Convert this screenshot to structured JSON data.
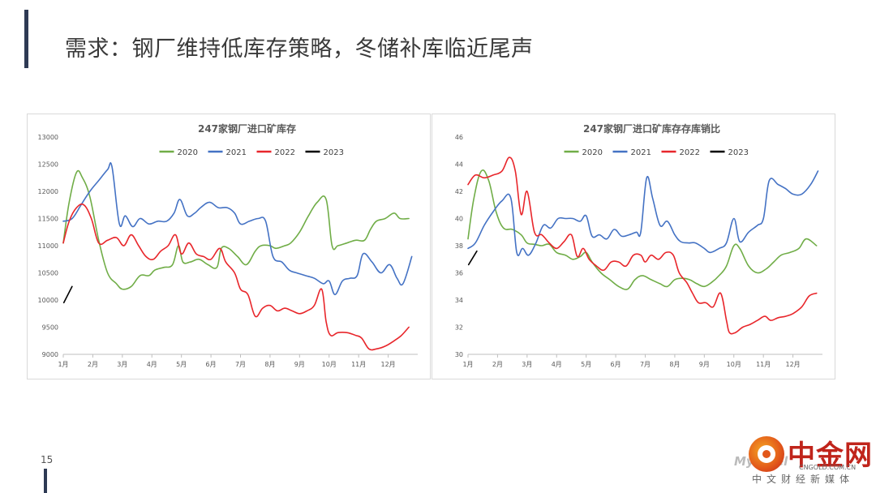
{
  "page": {
    "title": "需求：钢厂维持低库存策略，冬储补库临近尾声",
    "page_number": "15"
  },
  "logo": {
    "watermark": "Mysteel",
    "name": "中金网",
    "url": "CNGOLD.COM.CN",
    "subtitle": "中文财经新媒体",
    "accent": "#c0241b"
  },
  "chart_data": [
    {
      "type": "line",
      "title": "247家钢厂进口矿库存",
      "xlabel": "",
      "ylabel": "",
      "ylim": [
        9000,
        13000
      ],
      "yticks": [
        9000,
        9500,
        10000,
        10500,
        11000,
        11500,
        12000,
        12500,
        13000
      ],
      "xlim": [
        1,
        13
      ],
      "xticks": [
        1,
        2,
        3,
        4,
        5,
        6,
        7,
        8,
        9,
        10,
        11,
        12
      ],
      "xtick_labels": [
        "1月",
        "2月",
        "3月",
        "4月",
        "5月",
        "6月",
        "7月",
        "8月",
        "9月",
        "10月",
        "11月",
        "12月"
      ],
      "grid": false,
      "legend": "top",
      "series": [
        {
          "name": "2020",
          "color": "#70ad47",
          "x": [
            1.0,
            1.2,
            1.45,
            1.65,
            1.9,
            2.2,
            2.5,
            2.8,
            3.0,
            3.3,
            3.6,
            3.9,
            4.1,
            4.4,
            4.7,
            4.9,
            5.05,
            5.3,
            5.6,
            5.9,
            6.2,
            6.35,
            6.6,
            6.9,
            7.2,
            7.5,
            7.7,
            8.0,
            8.2,
            8.5,
            8.7,
            9.0,
            9.3,
            9.6,
            9.9,
            10.1,
            10.3,
            10.6,
            10.9,
            11.2,
            11.4,
            11.6,
            11.9,
            12.2,
            12.4,
            12.7
          ],
          "y": [
            11050,
            11800,
            12350,
            12250,
            11900,
            11100,
            10500,
            10300,
            10200,
            10250,
            10450,
            10450,
            10550,
            10600,
            10650,
            11000,
            10700,
            10700,
            10750,
            10650,
            10600,
            10950,
            10950,
            10800,
            10650,
            10900,
            11000,
            11000,
            10950,
            11000,
            11050,
            11250,
            11550,
            11800,
            11850,
            11000,
            11000,
            11050,
            11100,
            11100,
            11300,
            11450,
            11500,
            11600,
            11500,
            11500
          ]
        },
        {
          "name": "2021",
          "color": "#4472c4",
          "x": [
            1.0,
            1.3,
            1.6,
            1.9,
            2.2,
            2.5,
            2.65,
            2.9,
            3.1,
            3.35,
            3.6,
            3.9,
            4.2,
            4.5,
            4.75,
            4.95,
            5.2,
            5.45,
            5.65,
            5.95,
            6.25,
            6.55,
            6.8,
            7.0,
            7.3,
            7.6,
            7.85,
            8.1,
            8.4,
            8.65,
            8.9,
            9.2,
            9.5,
            9.8,
            10.0,
            10.2,
            10.45,
            10.7,
            10.95,
            11.15,
            11.45,
            11.75,
            12.05,
            12.3,
            12.5,
            12.8
          ],
          "y": [
            11450,
            11500,
            11750,
            12000,
            12200,
            12400,
            12450,
            11400,
            11550,
            11350,
            11500,
            11400,
            11450,
            11450,
            11600,
            11850,
            11550,
            11600,
            11700,
            11800,
            11700,
            11700,
            11600,
            11400,
            11450,
            11500,
            11450,
            10800,
            10700,
            10550,
            10500,
            10450,
            10400,
            10300,
            10350,
            10100,
            10350,
            10400,
            10450,
            10850,
            10700,
            10500,
            10650,
            10400,
            10300,
            10800
          ]
        },
        {
          "name": "2022",
          "color": "#e8262b",
          "x": [
            1.0,
            1.2,
            1.45,
            1.7,
            1.95,
            2.2,
            2.5,
            2.8,
            3.05,
            3.3,
            3.55,
            3.8,
            4.05,
            4.3,
            4.55,
            4.8,
            5.0,
            5.25,
            5.5,
            5.75,
            6.0,
            6.3,
            6.5,
            6.8,
            7.0,
            7.25,
            7.5,
            7.75,
            8.0,
            8.25,
            8.5,
            8.75,
            9.0,
            9.25,
            9.5,
            9.75,
            9.9,
            10.05,
            10.3,
            10.6,
            10.9,
            11.1,
            11.35,
            11.6,
            11.9,
            12.2,
            12.45,
            12.7
          ],
          "y": [
            11050,
            11450,
            11700,
            11750,
            11500,
            11050,
            11100,
            11150,
            11000,
            11200,
            11000,
            10800,
            10750,
            10900,
            11000,
            11200,
            10850,
            11050,
            10850,
            10800,
            10750,
            10950,
            10700,
            10500,
            10200,
            10100,
            9700,
            9850,
            9900,
            9800,
            9850,
            9800,
            9750,
            9800,
            9900,
            10200,
            9600,
            9350,
            9400,
            9400,
            9350,
            9300,
            9100,
            9100,
            9150,
            9250,
            9350,
            9500
          ]
        },
        {
          "name": "2023",
          "color": "#000000",
          "x": [
            1.02,
            1.3
          ],
          "y": [
            9950,
            10250
          ]
        }
      ]
    },
    {
      "type": "line",
      "title": "247家钢厂进口矿库存存库销比",
      "xlabel": "",
      "ylabel": "",
      "ylim": [
        30,
        46
      ],
      "yticks": [
        30,
        32,
        34,
        36,
        38,
        40,
        42,
        44,
        46
      ],
      "xlim": [
        1,
        13
      ],
      "xticks": [
        1,
        2,
        3,
        4,
        5,
        6,
        7,
        8,
        9,
        10,
        11,
        12
      ],
      "xtick_labels": [
        "1月",
        "2月",
        "3月",
        "4月",
        "5月",
        "6月",
        "7月",
        "8月",
        "9月",
        "10月",
        "11月",
        "12月"
      ],
      "grid": false,
      "legend": "top",
      "series": [
        {
          "name": "2020",
          "color": "#70ad47",
          "x": [
            1.0,
            1.2,
            1.45,
            1.7,
            1.95,
            2.2,
            2.5,
            2.8,
            3.0,
            3.25,
            3.5,
            3.75,
            4.0,
            4.3,
            4.55,
            4.8,
            5.0,
            5.2,
            5.5,
            5.8,
            6.1,
            6.4,
            6.65,
            6.9,
            7.2,
            7.5,
            7.75,
            8.0,
            8.25,
            8.5,
            8.75,
            9.0,
            9.25,
            9.5,
            9.75,
            10.0,
            10.2,
            10.5,
            10.8,
            11.1,
            11.35,
            11.6,
            11.9,
            12.2,
            12.45,
            12.8
          ],
          "y": [
            38.5,
            41.5,
            43.5,
            42.8,
            40.5,
            39.3,
            39.2,
            38.8,
            38.2,
            38.1,
            38.0,
            38.1,
            37.5,
            37.3,
            37.0,
            37.2,
            37.5,
            36.8,
            36.0,
            35.5,
            35.0,
            34.8,
            35.5,
            35.8,
            35.5,
            35.2,
            35.0,
            35.5,
            35.6,
            35.5,
            35.2,
            35.0,
            35.3,
            35.8,
            36.5,
            38.0,
            37.8,
            36.5,
            36.0,
            36.3,
            36.8,
            37.3,
            37.5,
            37.8,
            38.5,
            38.0
          ]
        },
        {
          "name": "2021",
          "color": "#4472c4",
          "x": [
            1.0,
            1.25,
            1.55,
            1.85,
            2.15,
            2.45,
            2.65,
            2.85,
            3.05,
            3.3,
            3.55,
            3.8,
            4.05,
            4.3,
            4.55,
            4.8,
            5.0,
            5.2,
            5.45,
            5.7,
            5.95,
            6.2,
            6.45,
            6.7,
            6.85,
            7.05,
            7.25,
            7.5,
            7.75,
            8.0,
            8.2,
            8.45,
            8.7,
            9.0,
            9.2,
            9.5,
            9.75,
            10.0,
            10.2,
            10.5,
            10.8,
            11.0,
            11.2,
            11.5,
            11.75,
            12.0,
            12.3,
            12.6,
            12.85
          ],
          "y": [
            37.8,
            38.2,
            39.5,
            40.5,
            41.3,
            41.5,
            37.5,
            37.8,
            37.3,
            38.2,
            39.5,
            39.3,
            40.0,
            40.0,
            40.0,
            39.8,
            40.2,
            38.7,
            38.8,
            38.5,
            39.2,
            38.7,
            38.8,
            39.0,
            39.0,
            43.0,
            41.5,
            39.5,
            39.8,
            38.8,
            38.3,
            38.2,
            38.2,
            37.8,
            37.5,
            37.8,
            38.2,
            40.0,
            38.3,
            39.0,
            39.5,
            40.0,
            42.8,
            42.5,
            42.2,
            41.8,
            41.8,
            42.5,
            43.5
          ]
        },
        {
          "name": "2022",
          "color": "#e8262b",
          "x": [
            1.0,
            1.25,
            1.55,
            1.85,
            2.15,
            2.4,
            2.6,
            2.8,
            3.0,
            3.25,
            3.5,
            3.75,
            4.0,
            4.25,
            4.5,
            4.7,
            4.9,
            5.1,
            5.35,
            5.6,
            5.85,
            6.1,
            6.35,
            6.6,
            6.85,
            7.0,
            7.2,
            7.45,
            7.7,
            7.95,
            8.15,
            8.4,
            8.6,
            8.8,
            9.05,
            9.3,
            9.55,
            9.75,
            9.85,
            10.05,
            10.3,
            10.55,
            10.8,
            11.05,
            11.25,
            11.5,
            11.75,
            12.0,
            12.3,
            12.55,
            12.8
          ],
          "y": [
            42.5,
            43.2,
            43.0,
            43.2,
            43.5,
            44.5,
            43.5,
            40.3,
            42.0,
            39.0,
            38.8,
            38.2,
            37.8,
            38.3,
            38.8,
            37.2,
            37.8,
            37.0,
            36.5,
            36.2,
            36.8,
            36.8,
            36.5,
            37.3,
            37.3,
            36.8,
            37.3,
            37.0,
            37.5,
            37.3,
            36.0,
            35.3,
            34.5,
            33.8,
            33.8,
            33.5,
            34.5,
            32.5,
            31.6,
            31.6,
            32.0,
            32.2,
            32.5,
            32.8,
            32.5,
            32.7,
            32.8,
            33.0,
            33.5,
            34.3,
            34.5
          ]
        },
        {
          "name": "2023",
          "color": "#000000",
          "x": [
            1.02,
            1.3
          ],
          "y": [
            36.6,
            37.6
          ]
        }
      ]
    }
  ]
}
